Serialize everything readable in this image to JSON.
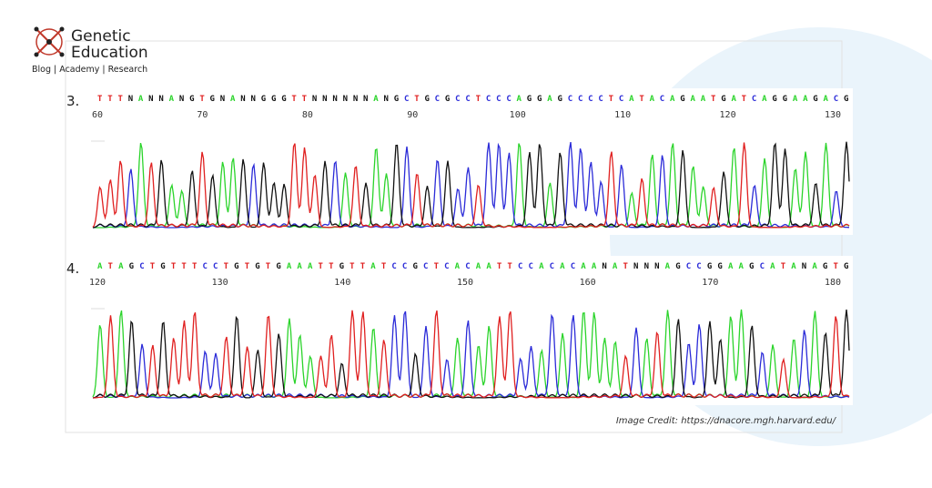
{
  "logo": {
    "name_line1": "Genetic",
    "name_line2": "Education",
    "tagline": "Blog | Academy | Research"
  },
  "panels": [
    {
      "label": "3.",
      "sequence": "TTTNANNANGTGNANNGGGTTNNNNNNANGCTGCGCCTCCCAGGAGCCCCTCATACAGAATGATCAGGAAGACG",
      "positions": [
        60,
        70,
        80,
        90,
        100,
        110,
        120,
        130
      ]
    },
    {
      "label": "4.",
      "sequence": "ATAGCTGTTTCCTGTGTGAAATTGTTATCCGCTCACAATTCCACACAANATNNNAGCCGGAAGCATANAGTG",
      "positions": [
        120,
        130,
        140,
        150,
        160,
        170,
        180
      ]
    }
  ],
  "credit": "Image Credit: https://dnacore.mgh.harvard.edu/"
}
